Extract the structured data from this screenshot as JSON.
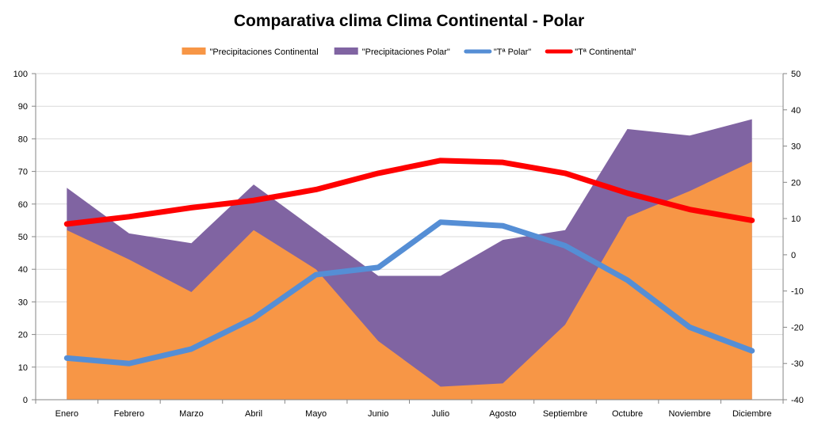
{
  "chart_data": {
    "type": "area",
    "title": "Comparativa clima Clima Continental - Polar",
    "categories": [
      "Enero",
      "Febrero",
      "Marzo",
      "Abril",
      "Mayo",
      "Junio",
      "Julio",
      "Agosto",
      "Septiembre",
      "Octubre",
      "Noviembre",
      "Diciembre"
    ],
    "ylim_left": [
      0,
      100
    ],
    "yticks_left": [
      0,
      10,
      20,
      30,
      40,
      50,
      60,
      70,
      80,
      90,
      100
    ],
    "ylim_right": [
      -40,
      50
    ],
    "yticks_right": [
      -40,
      -30,
      -20,
      -10,
      0,
      10,
      20,
      30,
      40,
      50
    ],
    "grid": true,
    "legend_position": "top",
    "area_series": [
      {
        "name": "\"Precipitaciones Polar\"",
        "color": "#8064a2",
        "values": [
          65,
          51,
          48,
          66,
          52,
          38,
          38,
          49,
          52,
          83,
          81,
          86
        ]
      },
      {
        "name": "\"Precipitaciones Continental",
        "color": "#f79646",
        "values": [
          52,
          43,
          33,
          52,
          40,
          18,
          4,
          5,
          23,
          56,
          64,
          73
        ]
      }
    ],
    "line_series": [
      {
        "name": "\"Tª Polar\"",
        "color": "#558ed5",
        "axis": "right",
        "values": [
          -28.5,
          -30,
          -26,
          -17.5,
          -5.5,
          -3.5,
          9,
          8,
          2.5,
          -7,
          -20,
          -26.5
        ]
      },
      {
        "name": "\"Tª Continental\"",
        "color": "#ff0000",
        "axis": "right",
        "values": [
          8.5,
          10.5,
          13,
          15,
          18,
          22.5,
          26,
          25.5,
          22.5,
          17,
          12.5,
          9.5
        ]
      }
    ],
    "legend": [
      {
        "label": "\"Precipitaciones Continental",
        "color": "#f79646",
        "kind": "area"
      },
      {
        "label": "\"Precipitaciones Polar\"",
        "color": "#8064a2",
        "kind": "area"
      },
      {
        "label": "\"Tª Polar\"",
        "color": "#558ed5",
        "kind": "line"
      },
      {
        "label": "\"Tª Continental\"",
        "color": "#ff0000",
        "kind": "line"
      }
    ]
  }
}
